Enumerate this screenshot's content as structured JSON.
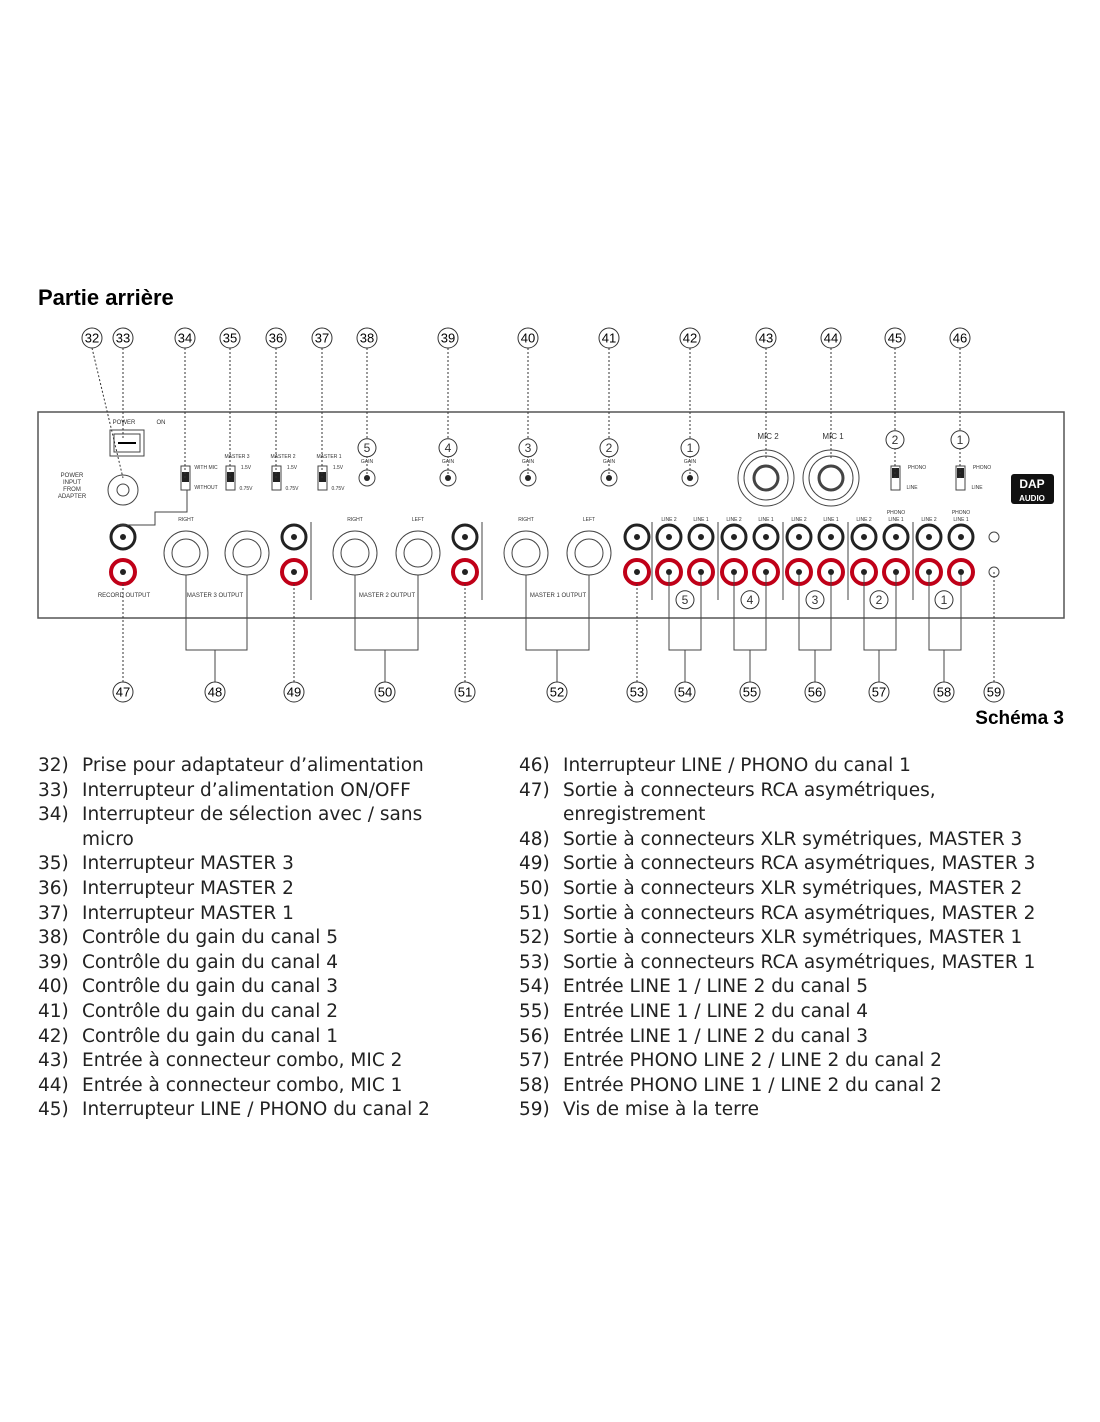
{
  "title": "Partie arrière",
  "callouts": {
    "top": [
      "32",
      "33",
      "34",
      "35",
      "36",
      "37",
      "38",
      "39",
      "40",
      "41",
      "42",
      "43",
      "44",
      "45",
      "46"
    ],
    "bottom": [
      "47",
      "48",
      "49",
      "50",
      "51",
      "52",
      "53",
      "54",
      "55",
      "56",
      "57",
      "58",
      "59"
    ]
  },
  "panel": {
    "labels": [
      "POWER",
      "ON",
      "POWER",
      "INPUT",
      "FROM",
      "ADAPTER",
      "WITH MIC",
      "WITHOUT",
      "MASTER 3",
      "1.5V",
      "0.75V",
      "MASTER 2",
      "1.5V",
      "0.75V",
      "MASTER 1",
      "1.5V",
      "0.75V",
      "GAIN",
      "GAIN",
      "GAIN",
      "GAIN",
      "GAIN",
      "5",
      "4",
      "3",
      "2",
      "1",
      "MIC 2",
      "MIC 1",
      "2",
      "1",
      "PHONO",
      "LINE",
      "PHONO",
      "LINE",
      "DAP",
      "AUDIO",
      "RIGHT",
      "RIGHT",
      "LEFT",
      "RIGHT",
      "LEFT",
      "RECORD OUTPUT",
      "MASTER 3 OUTPUT",
      "MASTER 2 OUTPUT",
      "MASTER 1 OUTPUT",
      "LINE 2",
      "LINE 1",
      "LINE 2",
      "LINE 1",
      "LINE 2",
      "LINE 1",
      "LINE 2",
      "PHONO",
      "LINE 1",
      "LINE 2",
      "PHONO",
      "LINE 1",
      "5",
      "4",
      "3",
      "2",
      "1"
    ]
  },
  "caption": "Schéma 3",
  "legend": {
    "left": [
      {
        "num": "32)",
        "text": "Prise pour adaptateur d’alimentation"
      },
      {
        "num": "33)",
        "text": "Interrupteur d’alimentation ON/OFF"
      },
      {
        "num": "34)",
        "text": "Interrupteur de sélection avec / sans micro"
      },
      {
        "num": "35)",
        "text": "Interrupteur MASTER 3"
      },
      {
        "num": "36)",
        "text": "Interrupteur MASTER 2"
      },
      {
        "num": "37)",
        "text": "Interrupteur MASTER 1"
      },
      {
        "num": "38)",
        "text": "Contrôle du gain du canal 5"
      },
      {
        "num": "39)",
        "text": "Contrôle du gain du canal 4"
      },
      {
        "num": "40)",
        "text": "Contrôle du gain du canal 3"
      },
      {
        "num": "41)",
        "text": "Contrôle du gain du canal 2"
      },
      {
        "num": "42)",
        "text": "Contrôle du gain du canal 1"
      },
      {
        "num": "43)",
        "text": "Entrée à connecteur combo, MIC 2"
      },
      {
        "num": "44)",
        "text": "Entrée à connecteur combo, MIC 1"
      },
      {
        "num": "45)",
        "text": "Interrupteur LINE / PHONO du canal 2"
      }
    ],
    "right": [
      {
        "num": "46)",
        "text": "Interrupteur LINE / PHONO du canal 1"
      },
      {
        "num": "47)",
        "text": "Sortie à connecteurs RCA asymétriques, enregistrement"
      },
      {
        "num": "48)",
        "text": "Sortie à connecteurs XLR symétriques, MASTER 3"
      },
      {
        "num": "49)",
        "text": "Sortie à connecteurs RCA asymétriques, MASTER 3"
      },
      {
        "num": "50)",
        "text": "Sortie à connecteurs XLR symétriques, MASTER 2"
      },
      {
        "num": "51)",
        "text": "Sortie à connecteurs RCA asymétriques, MASTER 2"
      },
      {
        "num": "52)",
        "text": "Sortie à connecteurs XLR symétriques, MASTER 1"
      },
      {
        "num": "53)",
        "text": "Sortie à connecteurs RCA asymétriques, MASTER 1"
      },
      {
        "num": "54)",
        "text": "Entrée LINE 1 / LINE 2 du canal 5"
      },
      {
        "num": "55)",
        "text": "Entrée LINE 1 / LINE 2 du canal 4"
      },
      {
        "num": "56)",
        "text": "Entrée LINE 1 / LINE 2 du canal 3"
      },
      {
        "num": "57)",
        "text": "Entrée PHONO LINE 2 / LINE 2 du canal 2"
      },
      {
        "num": "58)",
        "text": "Entrée PHONO LINE 1 / LINE 2 du canal 2"
      },
      {
        "num": "59)",
        "text": "Vis de mise à la terre"
      }
    ]
  }
}
